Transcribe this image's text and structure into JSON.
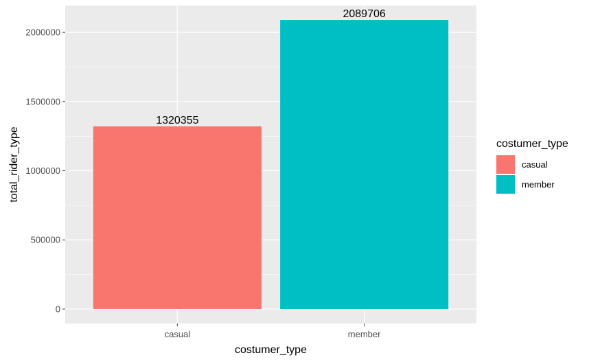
{
  "chart_data": {
    "type": "bar",
    "categories": [
      "casual",
      "member"
    ],
    "values": [
      1320355,
      2089706
    ],
    "data_labels": [
      "1320355",
      "2089706"
    ],
    "xlabel": "costumer_type",
    "ylabel": "total_rider_type",
    "ylim": [
      -104485,
      2194191
    ],
    "yticks": [
      0,
      500000,
      1000000,
      1500000,
      2000000
    ],
    "ytick_labels": [
      "0",
      "500000",
      "1000000",
      "1500000",
      "2000000"
    ],
    "grid": true,
    "legend": {
      "title": "costumer_type",
      "position": "right",
      "entries": [
        "casual",
        "member"
      ]
    },
    "colors": {
      "casual": "#F8766D",
      "member": "#00BFC4",
      "panel": "#EBEBEB",
      "grid": "#FFFFFF"
    }
  }
}
